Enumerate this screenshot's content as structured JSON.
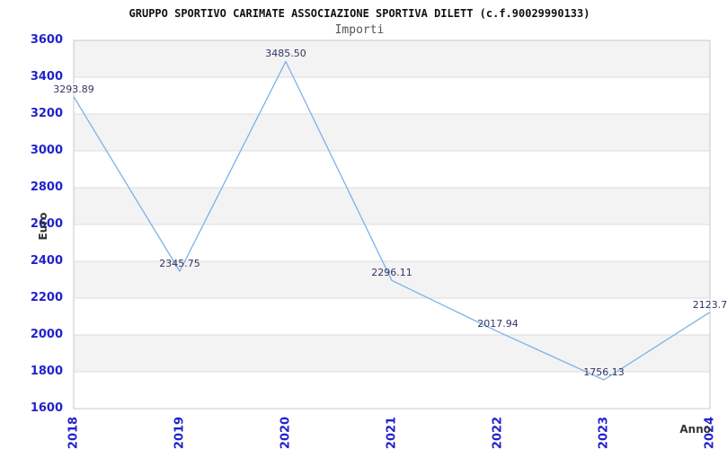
{
  "chart_data": {
    "type": "line",
    "title": "GRUPPO SPORTIVO CARIMATE ASSOCIAZIONE SPORTIVA DILETT (c.f.90029990133)",
    "subtitle": "Importi",
    "xlabel": "Anno",
    "ylabel": "Euro",
    "categories": [
      "2018",
      "2019",
      "2020",
      "2021",
      "2022",
      "2023",
      "2024"
    ],
    "values": [
      3293.89,
      2345.75,
      3485.5,
      2296.11,
      2017.94,
      1756.13,
      2123.7
    ],
    "point_labels": [
      "3293.89",
      "2345.75",
      "3485.50",
      "2296.11",
      "2017.94",
      "1756.13",
      "2123.7"
    ],
    "ylim": [
      1600,
      3600
    ],
    "y_ticks": [
      3600,
      3400,
      3200,
      3000,
      2800,
      2600,
      2400,
      2200,
      2000,
      1800,
      1600
    ],
    "grid": "horizontal-gridlines-with-alternating-bands",
    "legend_position": "none",
    "colors": {
      "line": "#7db1e8",
      "tick_label": "#2222cc",
      "point_label": "#333366",
      "band_gray": "#f3f3f3",
      "band_white": "#ffffff",
      "gridline": "#dcdcdc",
      "plot_border": "#c9c9c9",
      "title": "#111111",
      "subtitle": "#555555",
      "axis_title": "#333333"
    }
  }
}
